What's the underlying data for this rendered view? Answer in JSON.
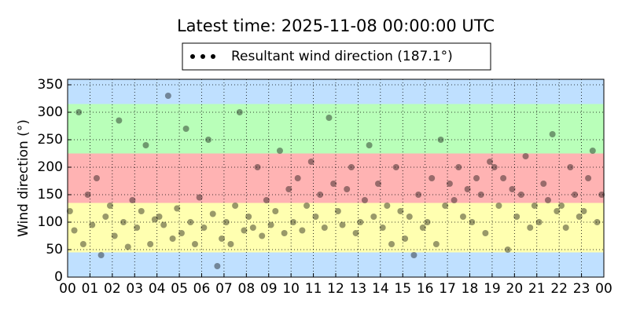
{
  "chart_data": {
    "type": "scatter",
    "title": "Latest time: 2025-11-08 00:00:00 UTC",
    "y_label": "Wind direction (°)",
    "xlim": [
      0,
      24
    ],
    "ylim": [
      0,
      360
    ],
    "xticks": [
      {
        "value": 0,
        "label": "00"
      },
      {
        "value": 1,
        "label": "01"
      },
      {
        "value": 2,
        "label": "02"
      },
      {
        "value": 3,
        "label": "03"
      },
      {
        "value": 4,
        "label": "04"
      },
      {
        "value": 5,
        "label": "05"
      },
      {
        "value": 6,
        "label": "06"
      },
      {
        "value": 7,
        "label": "07"
      },
      {
        "value": 8,
        "label": "08"
      },
      {
        "value": 9,
        "label": "09"
      },
      {
        "value": 10,
        "label": "10"
      },
      {
        "value": 11,
        "label": "11"
      },
      {
        "value": 12,
        "label": "12"
      },
      {
        "value": 13,
        "label": "13"
      },
      {
        "value": 14,
        "label": "14"
      },
      {
        "value": 15,
        "label": "15"
      },
      {
        "value": 16,
        "label": "16"
      },
      {
        "value": 17,
        "label": "17"
      },
      {
        "value": 18,
        "label": "18"
      },
      {
        "value": 19,
        "label": "19"
      },
      {
        "value": 20,
        "label": "20"
      },
      {
        "value": 21,
        "label": "21"
      },
      {
        "value": 22,
        "label": "22"
      },
      {
        "value": 23,
        "label": "23"
      },
      {
        "value": 24,
        "label": "00"
      }
    ],
    "yticks": [
      0,
      50,
      100,
      150,
      200,
      250,
      300,
      350
    ],
    "grid": true,
    "legend": "top",
    "bands": [
      {
        "from": 0,
        "to": 45,
        "color": "#bfe0ff"
      },
      {
        "from": 45,
        "to": 135,
        "color": "#ffffb0"
      },
      {
        "from": 135,
        "to": 225,
        "color": "#ffb3b3"
      },
      {
        "from": 225,
        "to": 315,
        "color": "#b9ffb9"
      },
      {
        "from": 315,
        "to": 360,
        "color": "#bfe0ff"
      }
    ],
    "series": [
      {
        "name": "Resultant wind direction (187.1°)",
        "color": "#000000",
        "alpha": 0.4,
        "x": [
          0.1,
          0.3,
          0.5,
          0.7,
          0.9,
          1.1,
          1.3,
          1.5,
          1.7,
          1.9,
          2.1,
          2.3,
          2.5,
          2.7,
          2.9,
          3.1,
          3.3,
          3.5,
          3.7,
          3.9,
          4.1,
          4.3,
          4.5,
          4.7,
          4.9,
          5.1,
          5.3,
          5.5,
          5.7,
          5.9,
          6.1,
          6.3,
          6.5,
          6.7,
          6.9,
          7.1,
          7.3,
          7.5,
          7.7,
          7.9,
          8.1,
          8.3,
          8.5,
          8.7,
          8.9,
          9.1,
          9.3,
          9.5,
          9.7,
          9.9,
          10.1,
          10.3,
          10.5,
          10.7,
          10.9,
          11.1,
          11.3,
          11.5,
          11.7,
          11.9,
          12.1,
          12.3,
          12.5,
          12.7,
          12.9,
          13.1,
          13.3,
          13.5,
          13.7,
          13.9,
          14.1,
          14.3,
          14.5,
          14.7,
          14.9,
          15.1,
          15.3,
          15.5,
          15.7,
          15.9,
          16.1,
          16.3,
          16.5,
          16.7,
          16.9,
          17.1,
          17.3,
          17.5,
          17.7,
          17.9,
          18.1,
          18.3,
          18.5,
          18.7,
          18.9,
          19.1,
          19.3,
          19.5,
          19.7,
          19.9,
          20.1,
          20.3,
          20.5,
          20.7,
          20.9,
          21.1,
          21.3,
          21.5,
          21.7,
          21.9,
          22.1,
          22.3,
          22.5,
          22.7,
          22.9,
          23.1,
          23.3,
          23.5,
          23.7,
          23.9
        ],
        "values": [
          120,
          85,
          300,
          60,
          150,
          95,
          180,
          40,
          110,
          130,
          75,
          285,
          100,
          55,
          140,
          90,
          120,
          240,
          60,
          105,
          110,
          95,
          330,
          70,
          125,
          80,
          270,
          100,
          60,
          145,
          90,
          250,
          115,
          20,
          70,
          100,
          60,
          130,
          300,
          85,
          110,
          90,
          200,
          75,
          140,
          95,
          120,
          230,
          80,
          160,
          100,
          180,
          85,
          130,
          210,
          110,
          150,
          90,
          290,
          170,
          120,
          95,
          160,
          200,
          80,
          100,
          140,
          240,
          110,
          170,
          90,
          130,
          60,
          200,
          120,
          70,
          110,
          40,
          150,
          90,
          100,
          180,
          60,
          250,
          130,
          170,
          140,
          200,
          110,
          160,
          100,
          180,
          150,
          80,
          210,
          200,
          130,
          180,
          50,
          160,
          110,
          150,
          220,
          90,
          130,
          100,
          170,
          140,
          260,
          120,
          130,
          90,
          200,
          150,
          110,
          120,
          180,
          230,
          100,
          150
        ]
      }
    ]
  }
}
